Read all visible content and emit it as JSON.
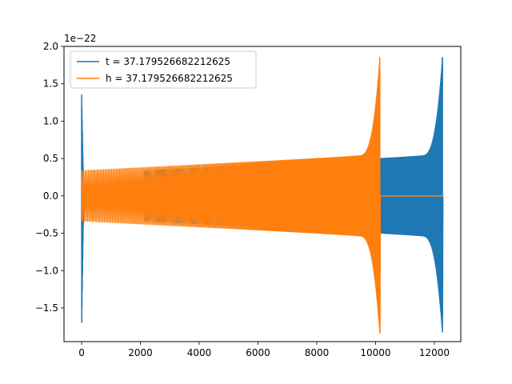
{
  "chart_data": {
    "type": "line",
    "title": "",
    "xlabel": "",
    "ylabel": "",
    "y_offset_text": "1e−22",
    "xlim": [
      -600,
      12900
    ],
    "ylim": [
      -1.95,
      2.0
    ],
    "x_ticks": [
      0,
      2000,
      4000,
      6000,
      8000,
      10000,
      12000
    ],
    "x_tick_labels": [
      "0",
      "2000",
      "4000",
      "6000",
      "8000",
      "10000",
      "12000"
    ],
    "y_ticks": [
      -1.5,
      -1.0,
      -0.5,
      0.0,
      0.5,
      1.0,
      1.5,
      2.0
    ],
    "y_tick_labels": [
      "−1.5",
      "−1.0",
      "−0.5",
      "0.0",
      "0.5",
      "1.0",
      "1.5",
      "2.0"
    ],
    "grid": false,
    "legend_position": "top-left",
    "series": [
      {
        "name": "t = 37.179526682212625",
        "color": "#1f77b4",
        "description_points": {
          "segments": [
            {
              "x_start": 0,
              "x_end": 60,
              "kind": "burst",
              "peak": 1.35,
              "trough": -1.8
            },
            {
              "x_start": 60,
              "x_end": 2150,
              "kind": "flat",
              "value": 0.0
            },
            {
              "x_start": 2150,
              "x_end": 12300,
              "kind": "chirp",
              "amp_start": 0.33,
              "amp_end": 0.53,
              "final_peak": 1.85,
              "final_trough": -1.62,
              "merger_x": 12280
            }
          ]
        }
      },
      {
        "name": "h = 37.179526682212625",
        "color": "#ff7f0e",
        "description_points": {
          "segments": [
            {
              "x_start": 0,
              "x_end": 10150,
              "kind": "chirp",
              "amp_start": 0.33,
              "amp_end": 0.53,
              "final_peak": 1.85,
              "final_trough": -1.8,
              "merger_x": 10150
            },
            {
              "x_start": 10150,
              "x_end": 12300,
              "kind": "flat",
              "value": 0.0
            }
          ]
        }
      }
    ]
  }
}
